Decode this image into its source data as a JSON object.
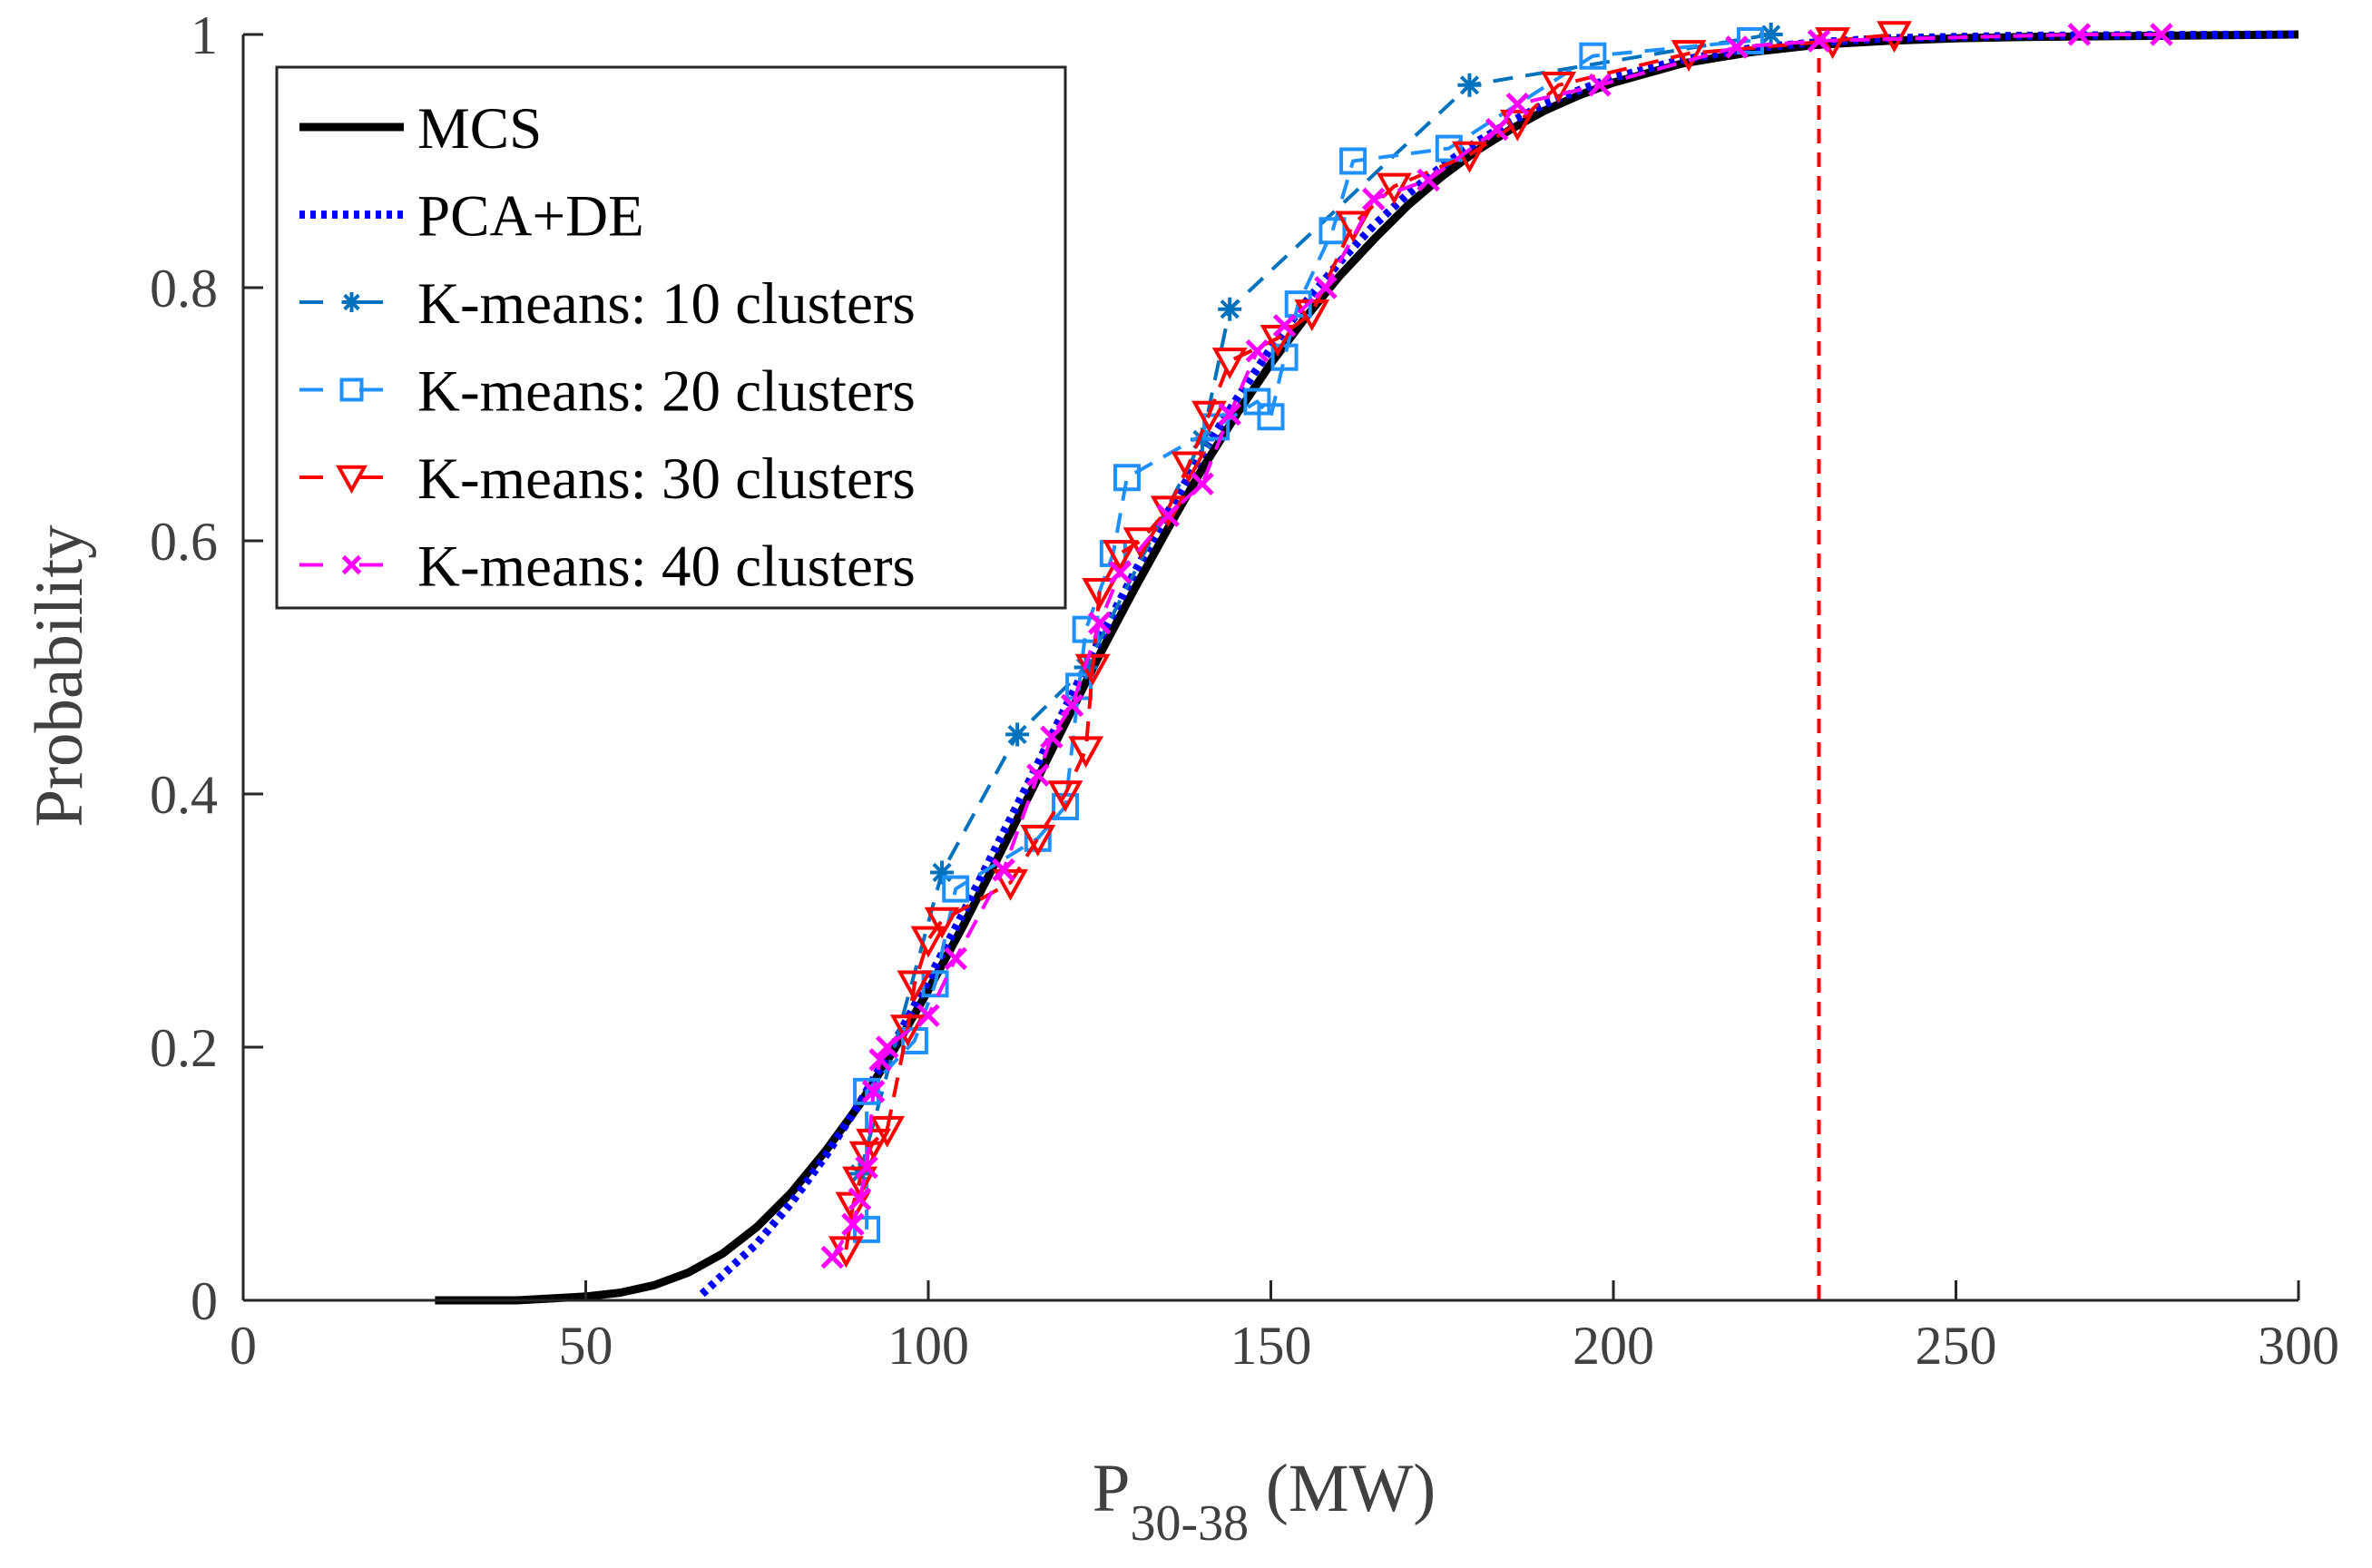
{
  "chart_data": {
    "type": "line",
    "title": "",
    "xlabel": "P",
    "xlabel_subscript": "30-38",
    "xlabel_unit": " (MW)",
    "ylabel": "Probability",
    "xlim": [
      0,
      300
    ],
    "ylim": [
      0,
      1
    ],
    "xticks": [
      0,
      50,
      100,
      150,
      200,
      250,
      300
    ],
    "xtick_labels": [
      "0",
      "50",
      "100",
      "150",
      "200",
      "250",
      "300"
    ],
    "yticks": [
      0,
      0.2,
      0.4,
      0.6,
      0.8,
      1
    ],
    "ytick_labels": [
      "0",
      "0.2",
      "0.4",
      "0.6",
      "0.8",
      "1"
    ],
    "grid": false,
    "legend_position": "top-left",
    "reference_line": {
      "x": 230,
      "color": "#ff0000",
      "style": "dashed"
    },
    "series": [
      {
        "name": "MCS",
        "color": "#000000",
        "style": "solid",
        "marker": "none",
        "x": [
          28,
          40,
          50,
          55,
          60,
          65,
          70,
          75,
          80,
          85,
          90,
          95,
          100,
          105,
          110,
          115,
          120,
          125,
          130,
          135,
          140,
          145,
          150,
          155,
          160,
          165,
          170,
          175,
          180,
          185,
          190,
          195,
          200,
          210,
          220,
          230,
          240,
          250,
          260,
          300
        ],
        "y": [
          0,
          0,
          0.003,
          0.006,
          0.012,
          0.022,
          0.037,
          0.058,
          0.085,
          0.118,
          0.155,
          0.198,
          0.245,
          0.295,
          0.348,
          0.402,
          0.456,
          0.51,
          0.561,
          0.61,
          0.657,
          0.7,
          0.74,
          0.776,
          0.809,
          0.838,
          0.865,
          0.888,
          0.908,
          0.925,
          0.94,
          0.952,
          0.962,
          0.977,
          0.986,
          0.992,
          0.995,
          0.997,
          0.998,
          1
        ]
      },
      {
        "name": "PCA+DE",
        "color": "#0000ff",
        "style": "dotted",
        "marker": "none",
        "x": [
          67,
          70,
          75,
          80,
          85,
          90,
          95,
          100,
          105,
          110,
          115,
          120,
          125,
          130,
          135,
          140,
          145,
          150,
          155,
          160,
          165,
          170,
          175,
          180,
          185,
          190,
          195,
          200,
          210,
          220,
          230,
          240,
          250,
          260,
          300
        ],
        "y": [
          0.005,
          0.02,
          0.045,
          0.077,
          0.114,
          0.156,
          0.203,
          0.253,
          0.305,
          0.359,
          0.413,
          0.468,
          0.522,
          0.574,
          0.623,
          0.669,
          0.712,
          0.752,
          0.788,
          0.82,
          0.849,
          0.874,
          0.896,
          0.915,
          0.931,
          0.945,
          0.956,
          0.966,
          0.98,
          0.989,
          0.994,
          0.997,
          0.998,
          0.999,
          1
        ]
      },
      {
        "name": "K-means: 10 clusters",
        "color": "#0072bd",
        "style": "dashed",
        "marker": "asterisk",
        "x": [
          90,
          102,
          113,
          123,
          140,
          144,
          179,
          223
        ],
        "y": [
          0.1,
          0.338,
          0.447,
          0.5,
          0.68,
          0.783,
          0.96,
          1
        ]
      },
      {
        "name": "K-means: 20 clusters",
        "color": "#1e90ff",
        "style": "dashed",
        "marker": "square",
        "x": [
          91,
          91,
          98,
          101,
          104,
          116,
          120,
          122,
          123,
          127,
          129,
          142,
          148,
          150,
          152,
          154,
          159,
          162,
          176,
          197,
          220
        ],
        "y": [
          0.056,
          0.165,
          0.205,
          0.25,
          0.325,
          0.365,
          0.39,
          0.485,
          0.53,
          0.59,
          0.65,
          0.69,
          0.71,
          0.698,
          0.745,
          0.787,
          0.845,
          0.9,
          0.91,
          0.983,
          0.995
        ]
      },
      {
        "name": "K-means: 30 clusters",
        "color": "#ff0000",
        "style": "dashed",
        "marker": "triangle-down",
        "x": [
          88,
          89,
          90,
          91,
          92,
          94,
          97,
          98,
          100,
          102,
          112,
          116,
          120,
          123,
          124,
          125,
          128,
          131,
          135,
          138,
          141,
          144,
          151,
          156,
          162,
          168,
          179,
          186,
          192,
          211,
          232,
          241
        ],
        "y": [
          0.04,
          0.075,
          0.095,
          0.115,
          0.125,
          0.135,
          0.215,
          0.25,
          0.285,
          0.3,
          0.33,
          0.365,
          0.4,
          0.435,
          0.5,
          0.56,
          0.59,
          0.6,
          0.625,
          0.66,
          0.7,
          0.742,
          0.76,
          0.78,
          0.85,
          0.88,
          0.905,
          0.93,
          0.96,
          0.985,
          0.995,
          1
        ]
      },
      {
        "name": "K-means: 40 clusters",
        "color": "#ff00ff",
        "style": "dashed",
        "marker": "cross",
        "x": [
          86,
          89,
          90,
          91,
          92,
          93,
          94,
          100,
          104,
          111,
          116,
          118,
          121,
          125,
          128,
          135,
          140,
          144,
          148,
          152,
          158,
          165,
          173,
          183,
          186,
          198,
          218,
          230,
          268,
          280
        ],
        "y": [
          0.034,
          0.06,
          0.08,
          0.105,
          0.165,
          0.19,
          0.2,
          0.225,
          0.27,
          0.34,
          0.415,
          0.445,
          0.47,
          0.535,
          0.575,
          0.62,
          0.645,
          0.7,
          0.75,
          0.77,
          0.8,
          0.87,
          0.885,
          0.925,
          0.945,
          0.96,
          0.99,
          0.995,
          1,
          1
        ]
      }
    ]
  }
}
